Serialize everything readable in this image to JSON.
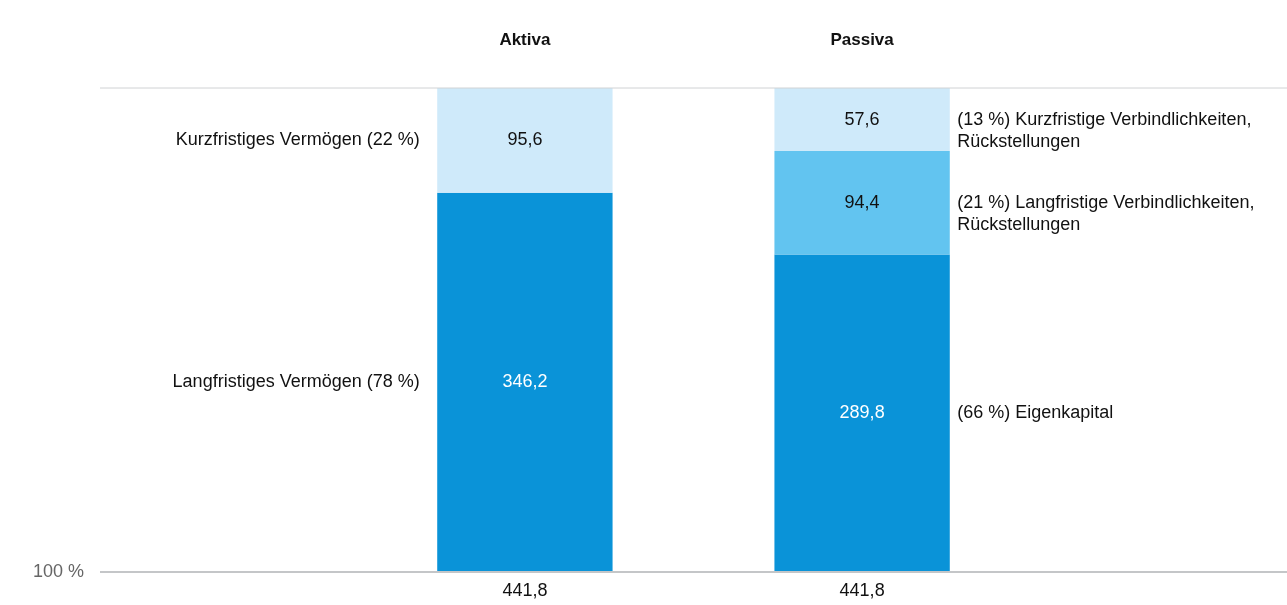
{
  "chart_data": {
    "type": "bar",
    "stacked": true,
    "categories": [
      "Aktiva",
      "Passiva"
    ],
    "series": [
      {
        "name": "Langfristiges Vermögen (78 %)",
        "color": "#0a93d8",
        "values": [
          346.2,
          null
        ],
        "value_labels": [
          "346,2",
          null
        ]
      },
      {
        "name": "Kurzfristiges Vermögen (22 %)",
        "color": "#cfeafa",
        "values": [
          95.6,
          null
        ],
        "value_labels": [
          "95,6",
          null
        ]
      },
      {
        "name": "(66 %) Eigenkapital",
        "color": "#0a93d8",
        "values": [
          null,
          289.8
        ],
        "value_labels": [
          null,
          "289,8"
        ]
      },
      {
        "name": "(21 %) Langfristige Verbindlichkeiten, Rückstellungen",
        "color": "#62c4f0",
        "values": [
          null,
          94.4
        ],
        "value_labels": [
          null,
          "94,4"
        ]
      },
      {
        "name": "(13 %) Kurzfristige Verbindlichkeiten, Rückstellungen",
        "color": "#cfeafa",
        "values": [
          null,
          57.6
        ],
        "value_labels": [
          null,
          "57,6"
        ]
      }
    ],
    "totals": [
      "441,8",
      "441,8"
    ],
    "annotations": [
      "100 %"
    ]
  }
}
